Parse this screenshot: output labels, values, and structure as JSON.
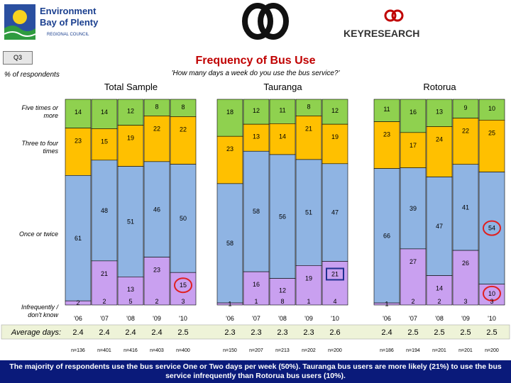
{
  "header": {
    "left_logo": {
      "line1": "Environment",
      "line2": "Bay of Plenty",
      "line3": "REGIONAL COUNCIL"
    },
    "right_logo": {
      "text": "KEYRESEARCH"
    }
  },
  "question_badge": "Q3",
  "title": "Frequency of Bus Use",
  "subtitle": "'How many days a week do you use the bus service?'",
  "ylabel": "% of respondents",
  "footer": "The majority of respondents use the bus service One or Two days per week (50%). Tauranga bus users are more likely (21%) to use the bus service infrequently than Rotorua bus users (10%).",
  "colors": {
    "five_plus": "#8fd14f",
    "three_four": "#ffc000",
    "once_twice": "#8fb4e3",
    "infrequent": "#c9a0f0",
    "title_red": "#c00000",
    "footer_bg": "#0a1a7a",
    "highlight_box": "#1f2f8f",
    "highlight_circle": "#e02020"
  },
  "chart_data": {
    "type": "bar",
    "stacked": true,
    "ylim": [
      0,
      100
    ],
    "category_labels": [
      "Five times or more",
      "Three to four times",
      "Once or twice",
      "Infrequently / don't know"
    ],
    "average_label": "Average days:",
    "groups": [
      {
        "name": "Total Sample",
        "years": [
          "'06",
          "'07",
          "'08",
          "'09",
          "'10"
        ],
        "series": {
          "five_plus": [
            14,
            14,
            12,
            8,
            8
          ],
          "three_four": [
            23,
            15,
            19,
            22,
            22
          ],
          "once_twice": [
            61,
            48,
            51,
            46,
            50
          ],
          "infrequent": [
            2,
            21,
            13,
            23,
            15
          ]
        },
        "extra_top": [
          "",
          "2",
          "5",
          "2",
          "3"
        ],
        "averages": [
          "2.4",
          "2.4",
          "2.4",
          "2.4",
          "2.5"
        ],
        "n": [
          "n=136",
          "n=401",
          "n=416",
          "n=403",
          "n=400"
        ]
      },
      {
        "name": "Tauranga",
        "years": [
          "'06",
          "'07",
          "'08",
          "'09",
          "'10"
        ],
        "series": {
          "five_plus": [
            18,
            12,
            11,
            8,
            12
          ],
          "three_four": [
            23,
            13,
            14,
            21,
            19
          ],
          "once_twice": [
            58,
            58,
            56,
            51,
            47
          ],
          "infrequent": [
            1,
            16,
            12,
            19,
            21
          ]
        },
        "extra_top": [
          "",
          "1",
          "8",
          "1",
          "4"
        ],
        "averages": [
          "2.3",
          "2.3",
          "2.3",
          "2.3",
          "2.6"
        ],
        "n": [
          "n=150",
          "n=207",
          "n=213",
          "n=202",
          "n=200"
        ]
      },
      {
        "name": "Rotorua",
        "years": [
          "'06",
          "'07",
          "'08",
          "'09",
          "'10"
        ],
        "series": {
          "five_plus": [
            11,
            16,
            13,
            9,
            10
          ],
          "three_four": [
            23,
            17,
            24,
            22,
            25
          ],
          "once_twice": [
            66,
            39,
            47,
            41,
            54
          ],
          "infrequent": [
            1,
            27,
            14,
            26,
            10
          ]
        },
        "extra_top": [
          "",
          "2",
          "2",
          "3",
          "3"
        ],
        "averages": [
          "2.4",
          "2.5",
          "2.5",
          "2.5",
          "2.5"
        ],
        "n": [
          "n=186",
          "n=194",
          "n=201",
          "n=201",
          "n=200"
        ]
      }
    ],
    "highlights": [
      {
        "group": 0,
        "bar": 4,
        "series": "infrequent",
        "shape": "circle"
      },
      {
        "group": 1,
        "bar": 4,
        "series": "infrequent",
        "shape": "box"
      },
      {
        "group": 2,
        "bar": 4,
        "series": "once_twice",
        "shape": "circle"
      },
      {
        "group": 2,
        "bar": 4,
        "series": "infrequent",
        "shape": "circle"
      }
    ]
  }
}
